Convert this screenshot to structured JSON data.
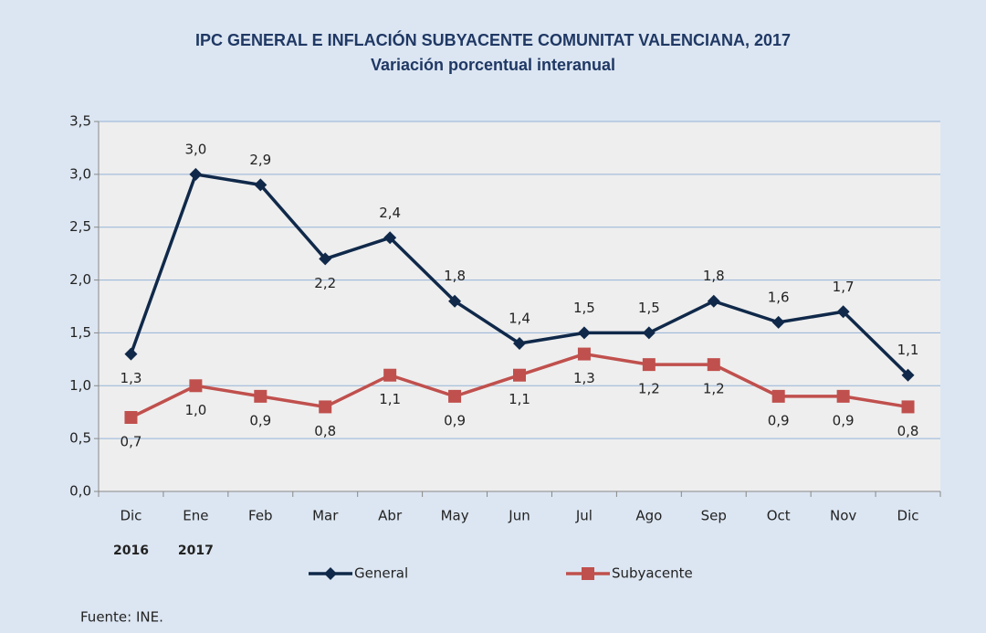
{
  "chart_data": {
    "type": "line",
    "title": "IPC GENERAL E INFLACIÓN SUBYACENTE COMUNITAT VALENCIANA, 2017",
    "subtitle": "Variación porcentual interanual",
    "categories": [
      "Dic",
      "Ene",
      "Feb",
      "Mar",
      "Abr",
      "May",
      "Jun",
      "Jul",
      "Ago",
      "Sep",
      "Oct",
      "Nov",
      "Dic"
    ],
    "category_years": [
      "2016",
      "2017",
      null,
      null,
      null,
      null,
      null,
      null,
      null,
      null,
      null,
      null,
      null
    ],
    "series": [
      {
        "name": "General",
        "color": "#10294a",
        "marker": "diamond",
        "values": [
          1.3,
          3.0,
          2.9,
          2.2,
          2.4,
          1.8,
          1.4,
          1.5,
          1.5,
          1.8,
          1.6,
          1.7,
          1.1
        ],
        "value_labels": [
          "1,3",
          "3,0",
          "2,9",
          "2,2",
          "2,4",
          "1,8",
          "1,4",
          "1,5",
          "1,5",
          "1,8",
          "1,6",
          "1,7",
          "1,1"
        ]
      },
      {
        "name": "Subyacente",
        "color": "#c0504d",
        "marker": "square",
        "values": [
          0.7,
          1.0,
          0.9,
          0.8,
          1.1,
          0.9,
          1.1,
          1.3,
          1.2,
          1.2,
          0.9,
          0.9,
          0.8
        ],
        "value_labels": [
          "0,7",
          "1,0",
          "0,9",
          "0,8",
          "1,1",
          "0,9",
          "1,1",
          "1,3",
          "1,2",
          "1,2",
          "0,9",
          "0,9",
          "0,8"
        ]
      }
    ],
    "ylim": [
      0,
      3.5
    ],
    "yticks": [
      {
        "value": 0,
        "label": "0,0"
      },
      {
        "value": 0.5,
        "label": "0,5"
      },
      {
        "value": 1,
        "label": "1,0"
      },
      {
        "value": 1.5,
        "label": "1,5"
      },
      {
        "value": 2,
        "label": "2,0"
      },
      {
        "value": 2.5,
        "label": "2,5"
      },
      {
        "value": 3,
        "label": "3,0"
      },
      {
        "value": 3.5,
        "label": "3,5"
      }
    ],
    "grid": true,
    "legend": "bottom",
    "source": "Fuente: INE."
  }
}
